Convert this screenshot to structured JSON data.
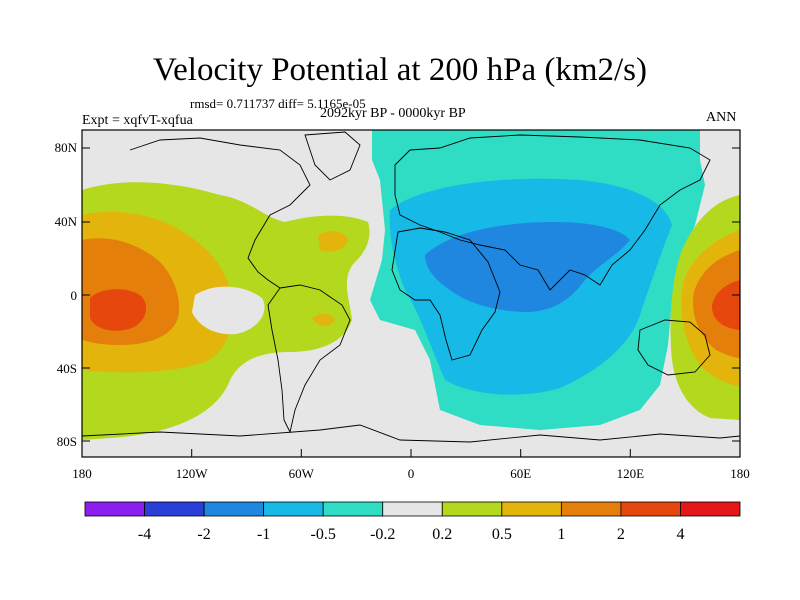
{
  "title": "Velocity Potential at 200 hPa (km2/s)",
  "stats_text": "rmsd= 0.711737 diff= 5.1165e-05",
  "experiment_text": "Expt = xqfvT-xqfua",
  "period_text": "2092kyr BP - 0000kyr BP",
  "season_text": "ANN",
  "map": {
    "lat_ticks": [
      "80N",
      "40N",
      "0",
      "40S",
      "80S"
    ],
    "lon_ticks": [
      "180",
      "120W",
      "60W",
      "0",
      "60E",
      "120E",
      "180"
    ]
  },
  "colorbar": {
    "labels": [
      "-4",
      "-2",
      "-1",
      "-0.5",
      "-0.2",
      "0.2",
      "0.5",
      "1",
      "2",
      "4"
    ],
    "colors": [
      "#8a1ff0",
      "#2a3ed8",
      "#1f87e0",
      "#17b9e6",
      "#2fdcc4",
      "#e6e6e6",
      "#b4d81e",
      "#e2b40c",
      "#e57f0c",
      "#e5470c",
      "#e41818"
    ]
  }
}
